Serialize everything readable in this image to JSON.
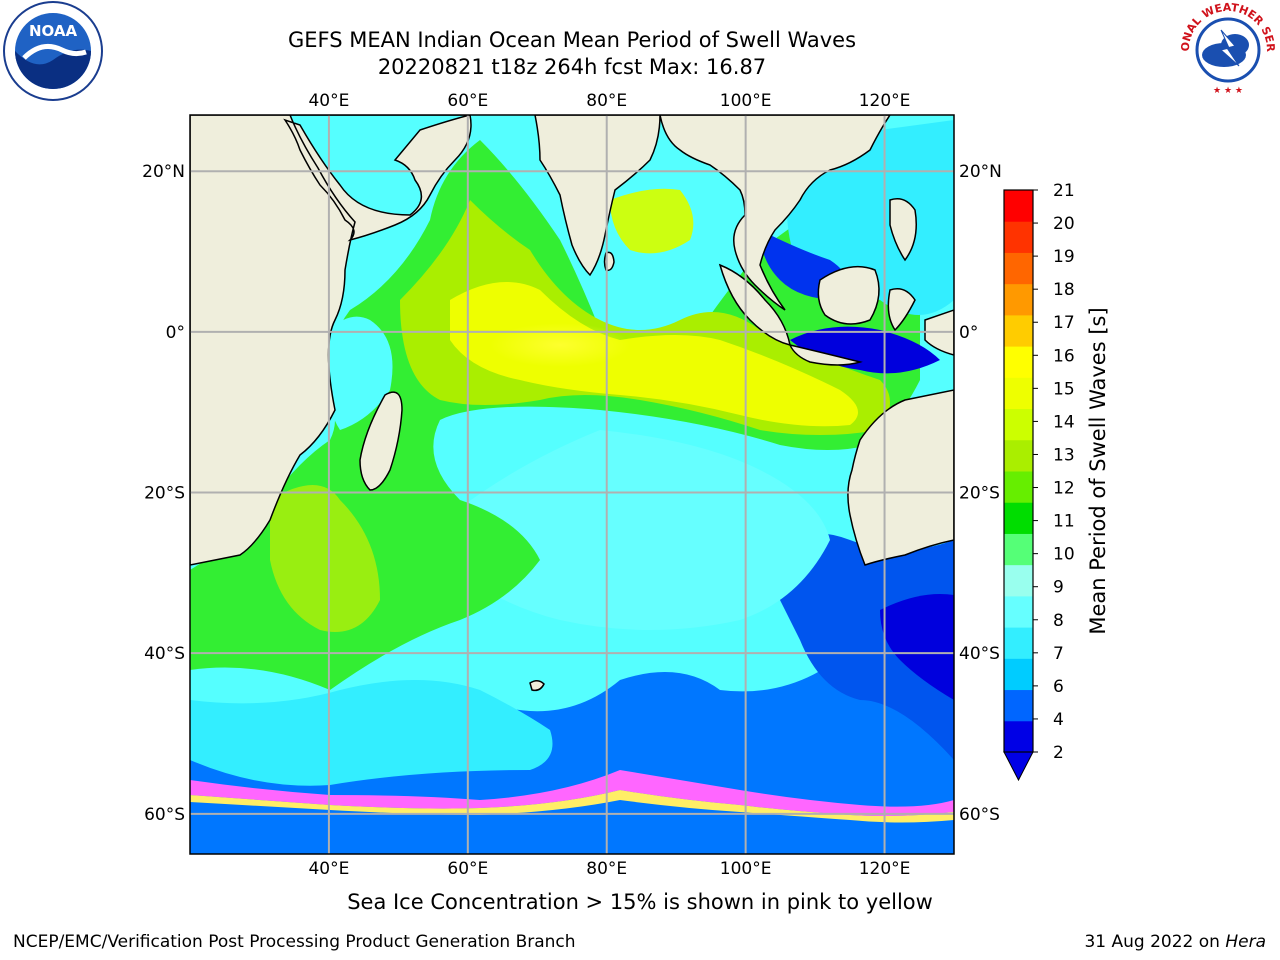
{
  "header": {
    "title": "GEFS MEAN Indian Ocean Mean Period of Swell Waves",
    "subtitle": "20220821 t18z 264h fcst   Max: 16.87"
  },
  "logos": {
    "left": {
      "icon": "noaa-logo",
      "text": "NOAA"
    },
    "right": {
      "icon": "nws-logo",
      "text": "NATIONAL WEATHER SERVICE"
    }
  },
  "map": {
    "lon_range": [
      20,
      130
    ],
    "lat_range": [
      -65,
      27
    ],
    "lon_ticks": [
      {
        "value": 40,
        "label": "40°E"
      },
      {
        "value": 60,
        "label": "60°E"
      },
      {
        "value": 80,
        "label": "80°E"
      },
      {
        "value": 100,
        "label": "100°E"
      },
      {
        "value": 120,
        "label": "120°E"
      }
    ],
    "lat_ticks": [
      {
        "value": 20,
        "label": "20°N"
      },
      {
        "value": 0,
        "label": "0°"
      },
      {
        "value": -20,
        "label": "20°S"
      },
      {
        "value": -40,
        "label": "40°S"
      },
      {
        "value": -60,
        "label": "60°S"
      }
    ],
    "grid": true,
    "land_color": "#efeedc",
    "ice_colors": [
      "#ff66ff",
      "#ffaa88",
      "#ffff66"
    ]
  },
  "colorbar": {
    "label": "Mean Period of Swell Waves [s]",
    "ticks": [
      "2",
      "4",
      "6",
      "7",
      "8",
      "9",
      "10",
      "11",
      "12",
      "13",
      "14",
      "15",
      "16",
      "17",
      "18",
      "19",
      "20",
      "21"
    ],
    "colors": [
      "#0000e6",
      "#0066ff",
      "#00ccff",
      "#33eeff",
      "#66ffff",
      "#99ffee",
      "#55ff77",
      "#00dd00",
      "#66ee00",
      "#aaee00",
      "#ccff00",
      "#eeff00",
      "#ffff00",
      "#ffcc00",
      "#ff9900",
      "#ff6600",
      "#ff3300",
      "#ff0000"
    ],
    "extend": "min"
  },
  "notes": {
    "ice": "Sea Ice Concentration > 15% is shown in pink to yellow"
  },
  "footer": {
    "left": "NCEP/EMC/Verification Post Processing Product Generation Branch",
    "right_prefix": "31 Aug 2022 on ",
    "right_host": "Hera"
  }
}
